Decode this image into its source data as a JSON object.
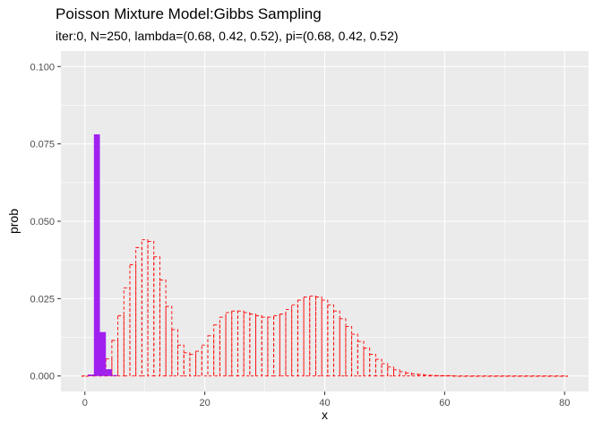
{
  "chart_data": {
    "type": "bar",
    "title": "Poisson Mixture Model:Gibbs Sampling",
    "subtitle": "iter:0, N=250, lambda=(0.68, 0.42, 0.52), pi=(0.68, 0.42, 0.52)",
    "xlabel": "x",
    "ylabel": "prob",
    "xlim": [
      -4,
      84
    ],
    "ylim": [
      -0.005,
      0.105
    ],
    "x_ticks": [
      "0",
      "20",
      "40",
      "60",
      "80"
    ],
    "y_ticks": [
      "0.000",
      "0.025",
      "0.050",
      "0.075",
      "0.100"
    ],
    "grid": true,
    "legend": "none",
    "colors": {
      "panel": "#ebebeb",
      "grid": "#ffffff",
      "sampled": "#a020f0",
      "true": "#ff0000"
    },
    "series": [
      {
        "style": "solid purple bars",
        "x": [
          0,
          1,
          2,
          3,
          4,
          5
        ],
        "values": [
          0.0,
          0.0005,
          0.0781,
          0.0142,
          0.0022,
          0.0003
        ]
      },
      {
        "style": "dashed red outline bars",
        "x": [
          0,
          1,
          2,
          3,
          4,
          5,
          6,
          7,
          8,
          9,
          10,
          11,
          12,
          13,
          14,
          15,
          16,
          17,
          18,
          19,
          20,
          21,
          22,
          23,
          24,
          25,
          26,
          27,
          28,
          29,
          30,
          31,
          32,
          33,
          34,
          35,
          36,
          37,
          38,
          39,
          40,
          41,
          42,
          43,
          44,
          45,
          46,
          47,
          48,
          49,
          50,
          51,
          52,
          53,
          54,
          55,
          56,
          57,
          58,
          59,
          60,
          61,
          62,
          63,
          64,
          65,
          66,
          67,
          68,
          69,
          70,
          71,
          72,
          73,
          74,
          75,
          76,
          77,
          78,
          79,
          80
        ],
        "values": [
          0.0,
          0.0001,
          0.0005,
          0.002,
          0.0055,
          0.0115,
          0.0195,
          0.0285,
          0.036,
          0.0415,
          0.044,
          0.0435,
          0.0385,
          0.031,
          0.0225,
          0.015,
          0.01,
          0.0075,
          0.007,
          0.008,
          0.01,
          0.013,
          0.0165,
          0.019,
          0.0205,
          0.021,
          0.021,
          0.0205,
          0.02,
          0.0195,
          0.019,
          0.019,
          0.0195,
          0.02,
          0.0215,
          0.023,
          0.0245,
          0.0255,
          0.0258,
          0.0255,
          0.0245,
          0.023,
          0.021,
          0.0185,
          0.016,
          0.0135,
          0.0112,
          0.009,
          0.007,
          0.0054,
          0.004,
          0.0029,
          0.002,
          0.0014,
          0.001,
          0.0007,
          0.0005,
          0.0003,
          0.0002,
          0.0001,
          0.0001,
          0.0001,
          0.0,
          0.0,
          0.0,
          0.0,
          0.0,
          0.0,
          0.0,
          0.0,
          0.0,
          0.0,
          0.0,
          0.0,
          0.0,
          0.0,
          0.0,
          0.0,
          0.0,
          0.0,
          0.0
        ]
      }
    ]
  }
}
